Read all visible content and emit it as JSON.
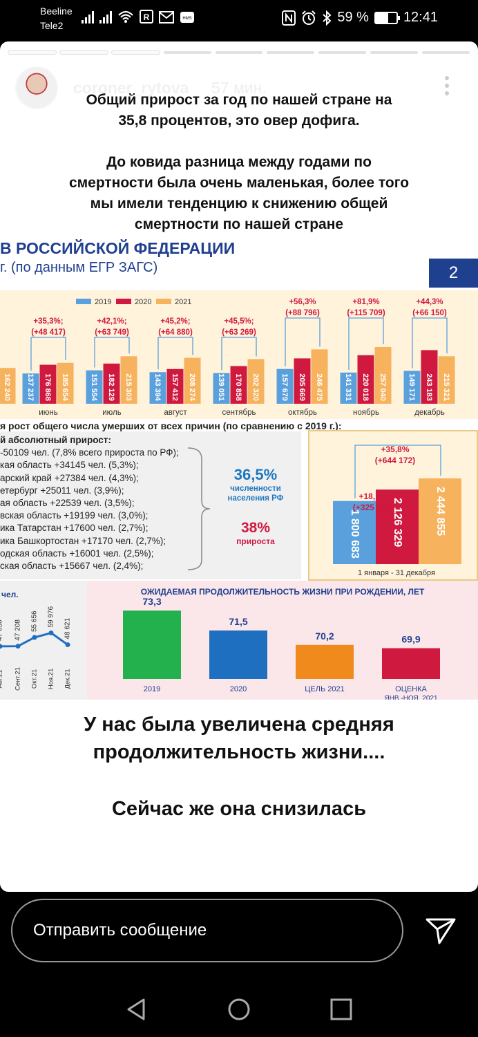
{
  "status_bar": {
    "carrier_1": "Beeline",
    "carrier_2": "Tele2",
    "battery": "59 %",
    "battery_level": 0.59,
    "time": "12:41",
    "icons": [
      "signal-icon",
      "signal-icon",
      "wifi-icon",
      "sim-r-icon",
      "mail-icon",
      "sms-icon",
      "nfc-icon",
      "alarm-icon",
      "bluetooth-icon",
      "battery-icon"
    ]
  },
  "story": {
    "username": "coroner_rytova",
    "time_ago": "57 мин.",
    "segments_total": 9,
    "segments_done": 3,
    "caption_1": [
      "Общий прирост за год по нашей стране на",
      "35,8 процентов, это овер дофига."
    ],
    "caption_2": [
      "До ковида разница между годами по",
      "смертности была очень маленькая, более того",
      "мы имели тенденцию к снижению общей",
      "смертности по нашей стране"
    ],
    "caption_3": [
      "У нас была увеличена средняя",
      "продолжительность жизни...."
    ],
    "caption_4": "Сейчас же она снизилась"
  },
  "infographic": {
    "title": "В РОССИЙСКОЙ ФЕДЕРАЦИИ",
    "subtitle": "г. (по данным ЕГР ЗАГС)",
    "slide_number": "2",
    "colors": {
      "y2019": "#5aa0dc",
      "y2020": "#d0193f",
      "y2021": "#f6b25c",
      "navy": "#1f3f8f"
    },
    "monthly_chart": {
      "type": "bar",
      "legend": [
        "2019",
        "2020",
        "2021"
      ],
      "categories": [
        "",
        "июнь",
        "июль",
        "август",
        "сентябрь",
        "октябрь",
        "ноябрь",
        "декабрь"
      ],
      "series": [
        {
          "name": "2019",
          "values": [
            null,
            137237,
            151554,
            143394,
            139051,
            157679,
            141331,
            149171
          ]
        },
        {
          "name": "2020",
          "values": [
            null,
            176868,
            182129,
            157412,
            170858,
            205669,
            220018,
            243183
          ]
        },
        {
          "name": "2021",
          "values": [
            162240,
            185654,
            215303,
            208274,
            202320,
            246475,
            257040,
            215321
          ]
        }
      ],
      "labels_2019": [
        "",
        "137 237",
        "151 554",
        "143 394",
        "139 051",
        "157 679",
        "141 331",
        "149 171"
      ],
      "labels_2020": [
        "",
        "176 868",
        "182 129",
        "157 412",
        "170 858",
        "205 669",
        "220 018",
        "243 183"
      ],
      "labels_2021": [
        "162 240",
        "185 654",
        "215 303",
        "208 274",
        "202 320",
        "246 475",
        "257 040",
        "215 321"
      ],
      "annotations": [
        {
          "pct": "",
          "abs": ""
        },
        {
          "pct": "+35,3%;",
          "abs": "(+48 417)"
        },
        {
          "pct": "+42,1%;",
          "abs": "(+63 749)"
        },
        {
          "pct": "+45,2%;",
          "abs": "(+64 880)"
        },
        {
          "pct": "+45,5%;",
          "abs": "(+63 269)"
        },
        {
          "pct": "+56,3%",
          "abs": "(+88 796)"
        },
        {
          "pct": "+81,9%",
          "abs": "(+115 709)"
        },
        {
          "pct": "+44,3%",
          "abs": "(+66 150)"
        }
      ]
    },
    "growth_caption": "я рост общего числа умерших от всех причин (по сравнению с 2019 г.):",
    "regions": {
      "heading": "й абсолютный прирост:",
      "items": [
        "-50109 чел. (7,8% всего прироста по РФ);",
        "кая область +34145 чел. (5,3%);",
        "арский край +27384 чел. (4,3%);",
        "етербург +25011 чел. (3,9%);",
        "ая область +22539 чел. (3,5%);",
        "вская область +19199 чел. (3,0%);",
        "ика Татарстан +17600 чел. (2,7%);",
        "ика Башкортостан +17170 чел. (2,7%);",
        "одская область +16001 чел. (2,5%);",
        "ская область +15667 чел. (2,4%);"
      ],
      "share_value": "36,5%",
      "share_label": [
        "численности",
        "населения РФ"
      ],
      "growth_value": "38%",
      "growth_label": "прироста"
    },
    "yearly_chart": {
      "type": "bar",
      "categories": [
        "2019",
        "2020",
        "2021"
      ],
      "values": [
        1800683,
        2126329,
        2444855
      ],
      "labels": [
        "1 800 683",
        "2 126 329",
        "2 444 855"
      ],
      "annotation_2020": [
        "+18,1%",
        "(+325 646)"
      ],
      "annotation_2021": [
        "+35,8%",
        "(+644 172)"
      ],
      "period": "1 января - 31 декабря"
    },
    "monthly_line": {
      "type": "line",
      "title": "чел.",
      "categories": [
        "Авг.21",
        "Сент.21",
        "Окт.21",
        "Ноя.21",
        "Дек.21"
      ],
      "values": [
        47050,
        47208,
        55656,
        59976,
        48621
      ],
      "labels": [
        "47 050",
        "47 208",
        "55 656",
        "59 976",
        "48 621"
      ]
    },
    "life_expectancy": {
      "type": "bar",
      "title": "ОЖИДАЕМАЯ ПРОДОЛЖИТЕЛЬНОСТЬ ЖИЗНИ ПРИ РОЖДЕНИИ, ЛЕТ",
      "categories": [
        "2019",
        "2020",
        "ЦЕЛЬ 2021",
        "ОЦЕНКА"
      ],
      "category_sub": [
        "",
        "",
        "",
        "ЯНВ.-НОЯ. 2021"
      ],
      "values": [
        73.3,
        71.5,
        70.2,
        69.9
      ],
      "labels": [
        "73,3",
        "71,5",
        "70,2",
        "69,9"
      ],
      "colors": [
        "#22b14c",
        "#1f6fc0",
        "#f08a1c",
        "#d0193f"
      ]
    }
  },
  "composer": {
    "placeholder": "Отправить сообщение"
  },
  "nav": {
    "icons": [
      "back-icon",
      "home-icon",
      "recents-icon"
    ]
  }
}
